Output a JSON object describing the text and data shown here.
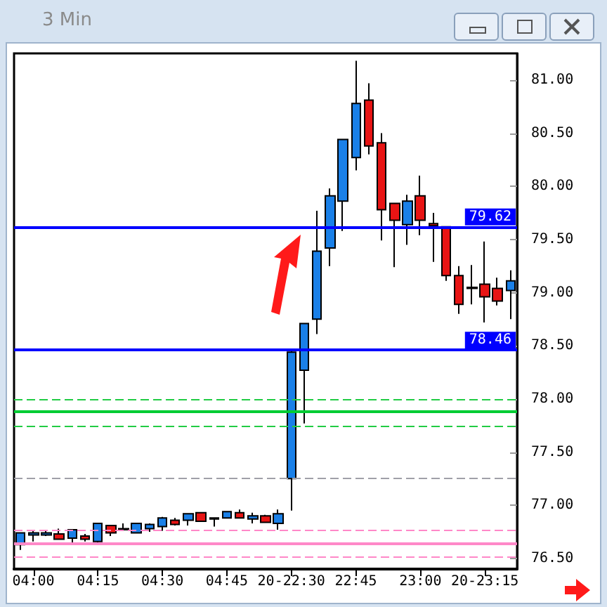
{
  "chart_data": {
    "type": "candlestick",
    "title": "3 Min",
    "categories": [
      null,
      "04:00",
      null,
      null,
      null,
      null,
      "04:15",
      null,
      null,
      null,
      null,
      "04:30",
      null,
      null,
      null,
      null,
      "04:45",
      null,
      null,
      null,
      null,
      "20-22:30",
      null,
      null,
      null,
      null,
      "22:45",
      null,
      null,
      null,
      null,
      "23:00",
      null,
      null,
      null,
      null,
      "20-23:15",
      null,
      null
    ],
    "ohlc": [
      [
        76.63,
        76.74,
        76.58,
        76.74
      ],
      [
        76.72,
        76.77,
        76.66,
        76.74
      ],
      [
        76.72,
        76.77,
        76.71,
        76.74
      ],
      [
        76.73,
        76.78,
        76.68,
        76.68
      ],
      [
        76.69,
        76.77,
        76.65,
        76.77
      ],
      [
        76.71,
        76.73,
        76.66,
        76.68
      ],
      [
        76.66,
        76.83,
        76.65,
        76.83
      ],
      [
        76.81,
        76.81,
        76.71,
        76.74
      ],
      [
        76.77,
        76.83,
        76.77,
        76.78
      ],
      [
        76.74,
        76.83,
        76.74,
        76.83
      ],
      [
        76.78,
        76.83,
        76.75,
        76.82
      ],
      [
        76.8,
        76.89,
        76.76,
        76.88
      ],
      [
        76.86,
        76.88,
        76.81,
        76.82
      ],
      [
        76.86,
        76.92,
        76.81,
        76.92
      ],
      [
        76.93,
        76.93,
        76.85,
        76.85
      ],
      [
        76.87,
        76.88,
        76.8,
        76.88
      ],
      [
        76.88,
        76.94,
        76.88,
        76.94
      ],
      [
        76.93,
        76.96,
        76.88,
        76.88
      ],
      [
        76.87,
        76.93,
        76.83,
        76.9
      ],
      [
        76.9,
        76.91,
        76.84,
        76.84
      ],
      [
        76.83,
        76.96,
        76.77,
        76.92
      ],
      [
        77.25,
        78.46,
        76.95,
        78.44
      ],
      [
        78.27,
        78.71,
        77.77,
        78.71
      ],
      [
        78.75,
        79.77,
        78.61,
        79.39
      ],
      [
        79.42,
        79.98,
        79.25,
        79.91
      ],
      [
        79.86,
        80.44,
        79.58,
        80.44
      ],
      [
        80.27,
        81.18,
        80.15,
        80.78
      ],
      [
        80.81,
        80.97,
        80.3,
        80.38
      ],
      [
        80.41,
        80.5,
        79.49,
        79.78
      ],
      [
        79.84,
        79.84,
        79.24,
        79.68
      ],
      [
        79.64,
        79.92,
        79.45,
        79.86
      ],
      [
        79.91,
        80.1,
        79.54,
        79.68
      ],
      [
        79.65,
        79.75,
        79.29,
        79.63
      ],
      [
        79.62,
        79.62,
        79.11,
        79.16
      ],
      [
        79.16,
        79.25,
        78.8,
        78.89
      ],
      [
        79.04,
        79.26,
        78.89,
        79.05
      ],
      [
        79.08,
        79.48,
        78.72,
        78.96
      ],
      [
        79.04,
        79.14,
        78.88,
        78.92
      ],
      [
        79.02,
        79.21,
        78.75,
        79.11
      ]
    ],
    "colors": [
      "#1a80e8",
      "#1a80e8",
      "#1a80e8",
      "#e81414",
      "#1a80e8",
      "#e81414",
      "#1a80e8",
      "#e81414",
      "#1a80e8",
      "#1a80e8",
      "#1a80e8",
      "#1a80e8",
      "#e81414",
      "#1a80e8",
      "#e81414",
      "#1a80e8",
      "#1a80e8",
      "#e81414",
      "#1a80e8",
      "#e81414",
      "#1a80e8",
      "#1a80e8",
      "#1a80e8",
      "#1a80e8",
      "#1a80e8",
      "#1a80e8",
      "#1a80e8",
      "#e81414",
      "#e81414",
      "#e81414",
      "#1a80e8",
      "#e81414",
      "#e81414",
      "#e81414",
      "#e81414",
      "#1a80e8",
      "#e81414",
      "#e81414",
      "#1a80e8"
    ],
    "ylim": [
      76.4,
      81.25
    ],
    "yticks": [
      {
        "value": 76.5,
        "label": "76.50"
      },
      {
        "value": 77,
        "label": "77.00"
      },
      {
        "value": 77.5,
        "label": "77.50"
      },
      {
        "value": 78,
        "label": "78.00"
      },
      {
        "value": 78.5,
        "label": "78.50"
      },
      {
        "value": 79,
        "label": "79.00"
      },
      {
        "value": 79.5,
        "label": "79.50"
      },
      {
        "value": 80,
        "label": "80.00"
      },
      {
        "value": 80.5,
        "label": "80.50"
      },
      {
        "value": 81,
        "label": "81.00"
      }
    ],
    "ref_lines": [
      {
        "axis": "y",
        "value": 79.62,
        "label": "79.62",
        "color": "#0000ff",
        "line_style": "solid"
      },
      {
        "axis": "y",
        "value": 78.46,
        "label": "78.46",
        "color": "#0000ff",
        "line_style": "solid"
      },
      {
        "axis": "y",
        "value": 78.0,
        "label": null,
        "color": "#22cc44",
        "line_style": "dashed"
      },
      {
        "axis": "y",
        "value": 77.88,
        "label": null,
        "color": "#00cc33",
        "line_style": "solid"
      },
      {
        "axis": "y",
        "value": 77.74,
        "label": null,
        "color": "#22cc44",
        "line_style": "dashed"
      },
      {
        "axis": "y",
        "value": 77.25,
        "label": null,
        "color": "#a0a0a8",
        "line_style": "dashed"
      },
      {
        "axis": "y",
        "value": 76.77,
        "label": null,
        "color": "#ff88c8",
        "line_style": "dashed"
      },
      {
        "axis": "y",
        "value": 76.64,
        "label": null,
        "color": "#ff88c8",
        "line_style": "solid"
      },
      {
        "axis": "y",
        "value": 76.51,
        "label": null,
        "color": "#ff88c8",
        "line_style": "dashed"
      }
    ],
    "grid": false
  }
}
